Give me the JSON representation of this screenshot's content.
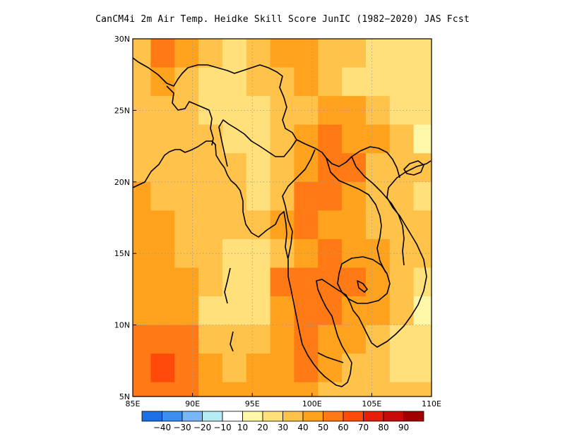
{
  "title": "CanCM4i  2m Air Temp. Heidke Skill Score JunIC (1982−2020) JAS Fcst",
  "map": {
    "lon_range": [
      85,
      110
    ],
    "lat_range": [
      5,
      30
    ],
    "lon_ticks": [
      {
        "value": 85,
        "label": "85E"
      },
      {
        "value": 90,
        "label": "90E"
      },
      {
        "value": 95,
        "label": "95E"
      },
      {
        "value": 100,
        "label": "100E"
      },
      {
        "value": 105,
        "label": "105E"
      },
      {
        "value": 110,
        "label": "110E"
      }
    ],
    "lat_ticks": [
      {
        "value": 5,
        "label": "5N"
      },
      {
        "value": 10,
        "label": "10N"
      },
      {
        "value": 15,
        "label": "15N"
      },
      {
        "value": 20,
        "label": "20N"
      },
      {
        "value": 25,
        "label": "25N"
      },
      {
        "value": 30,
        "label": "30N"
      }
    ],
    "grid": "dotted",
    "coastline_color": "#000000"
  },
  "colorbar": {
    "colors": [
      "#1e6fe6",
      "#3c8ef0",
      "#78b6f5",
      "#b4ecf5",
      "#ffffff",
      "#fff7a8",
      "#ffe07a",
      "#ffc24a",
      "#ffa31e",
      "#ff7a14",
      "#ff4a0a",
      "#e61e0a",
      "#c80a0a",
      "#a00000"
    ],
    "labels": [
      "−40",
      "−30",
      "−20",
      "−10",
      "10",
      "20",
      "30",
      "40",
      "50",
      "60",
      "70",
      "80",
      "90"
    ]
  },
  "chart_data": {
    "type": "heatmap",
    "title": "CanCM4i  2m Air Temp. Heidke Skill Score JunIC (1982−2020) JAS Fcst",
    "x_axis": "longitude",
    "y_axis": "latitude",
    "xlim": [
      85,
      110
    ],
    "ylim": [
      5,
      30
    ],
    "value_range": [
      -50,
      100
    ],
    "contour_levels": [
      -40,
      -30,
      -20,
      -10,
      10,
      20,
      30,
      40,
      50,
      60,
      70,
      80,
      90
    ],
    "lat_rows": [
      29,
      27,
      25,
      23,
      21,
      19,
      17,
      15,
      13,
      11,
      9,
      7,
      5
    ],
    "lon_cols": [
      85.5,
      87.5,
      89.5,
      91.5,
      93.5,
      95.5,
      97.5,
      99.5,
      101.5,
      103.5,
      105.5,
      107.5,
      109.5
    ],
    "values": [
      [
        35,
        55,
        45,
        32,
        28,
        35,
        45,
        45,
        38,
        30,
        28,
        26,
        22
      ],
      [
        30,
        45,
        35,
        25,
        25,
        30,
        35,
        40,
        35,
        28,
        25,
        22,
        20
      ],
      [
        32,
        35,
        30,
        25,
        20,
        28,
        30,
        30,
        40,
        45,
        38,
        28,
        25
      ],
      [
        35,
        38,
        35,
        30,
        25,
        28,
        32,
        45,
        50,
        42,
        40,
        30,
        18
      ],
      [
        32,
        30,
        30,
        32,
        30,
        28,
        38,
        48,
        55,
        50,
        35,
        35,
        30
      ],
      [
        40,
        38,
        35,
        30,
        32,
        28,
        38,
        52,
        50,
        42,
        38,
        32,
        25
      ],
      [
        40,
        42,
        38,
        35,
        30,
        30,
        40,
        52,
        48,
        44,
        38,
        34,
        30
      ],
      [
        42,
        42,
        38,
        36,
        28,
        20,
        38,
        48,
        50,
        48,
        40,
        35,
        30
      ],
      [
        45,
        42,
        40,
        30,
        25,
        20,
        50,
        55,
        50,
        50,
        45,
        30,
        25
      ],
      [
        42,
        45,
        40,
        28,
        22,
        28,
        45,
        50,
        55,
        48,
        40,
        30,
        18
      ],
      [
        50,
        55,
        50,
        38,
        30,
        35,
        40,
        55,
        45,
        40,
        35,
        28,
        25
      ],
      [
        58,
        60,
        55,
        45,
        35,
        40,
        42,
        50,
        40,
        35,
        30,
        28,
        28
      ],
      [
        55,
        58,
        55,
        45,
        40,
        40,
        40,
        45,
        38,
        32,
        30,
        30,
        30
      ]
    ]
  }
}
